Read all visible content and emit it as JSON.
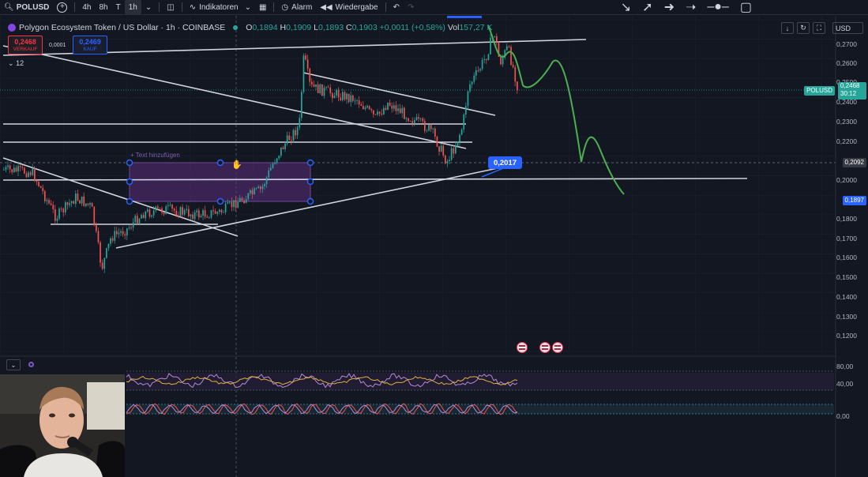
{
  "toolbar": {
    "symbol": "POLUSD",
    "intervals": [
      "4h",
      "8h",
      "T",
      "1h"
    ],
    "indicators_label": "Indikatoren",
    "alarm_label": "Alarm",
    "replay_label": "Wiedergabe"
  },
  "legend": {
    "title": "Polygon Ecosystem Token / US Dollar · 1h · COINBASE",
    "open_label": "O",
    "open": "0,1894",
    "high_label": "H",
    "high": "0,1909",
    "low_label": "L",
    "low": "0,1893",
    "close_label": "C",
    "close": "0,1903",
    "change": "+0,0011 (+0,58%)",
    "volume_label": "Vol",
    "volume": "157,27 K"
  },
  "trade": {
    "sell_price": "0,2468",
    "sell_label": "VERKAUF",
    "spread": "0,0001",
    "buy_price": "0,2469",
    "buy_label": "KAUF"
  },
  "collapse_count": "12",
  "currency": "USD",
  "price_axis": [
    "0,2700",
    "0,2600",
    "0,2500",
    "0,2400",
    "0,2300",
    "0,2200",
    "0,2000",
    "0,1800",
    "0,1700",
    "0,1600",
    "0,1500",
    "0,1400",
    "0,1300",
    "0,1200"
  ],
  "price_tags": {
    "symbol_tag": "POLUSD",
    "current_price": "0,2468",
    "countdown": "30:12",
    "crosshair_price": "0,2092",
    "level_price": "0,1897"
  },
  "drawing": {
    "price_label": "0,2017",
    "text_hint": "+ Text hinzufügen"
  },
  "oscillator_axis": [
    "80,00",
    "40,00",
    "0,00"
  ],
  "colors": {
    "background": "#131722",
    "up": "#26a69a",
    "down": "#ef5350",
    "projection": "#4caf50",
    "accent": "#2962ff"
  },
  "icons": [
    "search-icon",
    "add-icon",
    "candle-icon",
    "indicator-icon",
    "layout-icon",
    "alarm-icon",
    "replay-icon",
    "undo-icon",
    "redo-icon",
    "trendline-icon",
    "ray-icon",
    "brush-icon",
    "measure-icon",
    "horizontal-line-icon",
    "rectangle-icon"
  ]
}
